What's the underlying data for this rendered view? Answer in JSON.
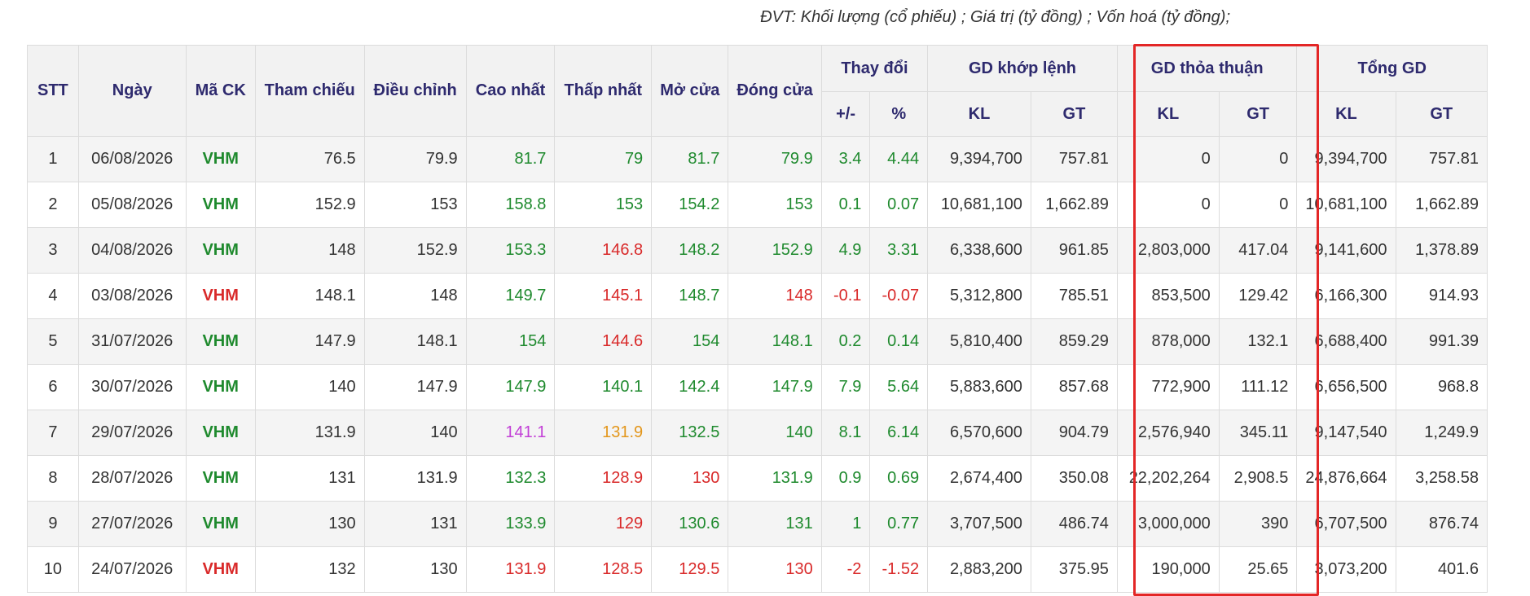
{
  "unit_note": "ĐVT: Khối lượng (cổ phiếu) ; Giá trị (tỷ đồng) ; Vốn hoá (tỷ đồng);",
  "headers": {
    "stt": "STT",
    "ngay": "Ngày",
    "ma_ck": "Mã CK",
    "tham_chieu": "Tham chiếu",
    "dieu_chinh": "Điều chỉnh",
    "cao_nhat": "Cao nhất",
    "thap_nhat": "Thấp nhất",
    "mo_cua": "Mở cửa",
    "dong_cua": "Đóng cửa",
    "thay_doi": "Thay đổi",
    "thay_doi_abs": "+/-",
    "thay_doi_pct": "%",
    "gd_khop_lenh": "GD khớp lệnh",
    "gd_thoa_thuan": "GD thỏa thuận",
    "tong_gd": "Tổng GD",
    "kl": "KL",
    "gt": "GT"
  },
  "colors": {
    "up": "#1f8a2e",
    "down": "#d92a2a",
    "ceiling": "#c23fd6",
    "reference": "#e3961b",
    "header_text": "#2e2a6e",
    "highlight_box": "#e32626"
  },
  "rows": [
    {
      "stt": "1",
      "ngay": "06/08/2026",
      "ma_ck": "VHM",
      "ma_ck_color": "up",
      "tham_chieu": "76.5",
      "dieu_chinh": "79.9",
      "cao_nhat": "81.7",
      "cao_nhat_color": "up",
      "thap_nhat": "79",
      "thap_nhat_color": "up",
      "mo_cua": "81.7",
      "mo_cua_color": "up",
      "dong_cua": "79.9",
      "dong_cua_color": "up",
      "thay_doi_abs": "3.4",
      "thay_doi_pct": "4.44",
      "thay_doi_color": "up",
      "khop_kl": "9,394,700",
      "khop_gt": "757.81",
      "tt_kl": "0",
      "tt_gt": "0",
      "tong_kl": "9,394,700",
      "tong_gt": "757.81"
    },
    {
      "stt": "2",
      "ngay": "05/08/2026",
      "ma_ck": "VHM",
      "ma_ck_color": "up",
      "tham_chieu": "152.9",
      "dieu_chinh": "153",
      "cao_nhat": "158.8",
      "cao_nhat_color": "up",
      "thap_nhat": "153",
      "thap_nhat_color": "up",
      "mo_cua": "154.2",
      "mo_cua_color": "up",
      "dong_cua": "153",
      "dong_cua_color": "up",
      "thay_doi_abs": "0.1",
      "thay_doi_pct": "0.07",
      "thay_doi_color": "up",
      "khop_kl": "10,681,100",
      "khop_gt": "1,662.89",
      "tt_kl": "0",
      "tt_gt": "0",
      "tong_kl": "10,681,100",
      "tong_gt": "1,662.89"
    },
    {
      "stt": "3",
      "ngay": "04/08/2026",
      "ma_ck": "VHM",
      "ma_ck_color": "up",
      "tham_chieu": "148",
      "dieu_chinh": "152.9",
      "cao_nhat": "153.3",
      "cao_nhat_color": "up",
      "thap_nhat": "146.8",
      "thap_nhat_color": "down",
      "mo_cua": "148.2",
      "mo_cua_color": "up",
      "dong_cua": "152.9",
      "dong_cua_color": "up",
      "thay_doi_abs": "4.9",
      "thay_doi_pct": "3.31",
      "thay_doi_color": "up",
      "khop_kl": "6,338,600",
      "khop_gt": "961.85",
      "tt_kl": "2,803,000",
      "tt_gt": "417.04",
      "tong_kl": "9,141,600",
      "tong_gt": "1,378.89"
    },
    {
      "stt": "4",
      "ngay": "03/08/2026",
      "ma_ck": "VHM",
      "ma_ck_color": "down",
      "tham_chieu": "148.1",
      "dieu_chinh": "148",
      "cao_nhat": "149.7",
      "cao_nhat_color": "up",
      "thap_nhat": "145.1",
      "thap_nhat_color": "down",
      "mo_cua": "148.7",
      "mo_cua_color": "up",
      "dong_cua": "148",
      "dong_cua_color": "down",
      "thay_doi_abs": "-0.1",
      "thay_doi_pct": "-0.07",
      "thay_doi_color": "down",
      "khop_kl": "5,312,800",
      "khop_gt": "785.51",
      "tt_kl": "853,500",
      "tt_gt": "129.42",
      "tong_kl": "6,166,300",
      "tong_gt": "914.93"
    },
    {
      "stt": "5",
      "ngay": "31/07/2026",
      "ma_ck": "VHM",
      "ma_ck_color": "up",
      "tham_chieu": "147.9",
      "dieu_chinh": "148.1",
      "cao_nhat": "154",
      "cao_nhat_color": "up",
      "thap_nhat": "144.6",
      "thap_nhat_color": "down",
      "mo_cua": "154",
      "mo_cua_color": "up",
      "dong_cua": "148.1",
      "dong_cua_color": "up",
      "thay_doi_abs": "0.2",
      "thay_doi_pct": "0.14",
      "thay_doi_color": "up",
      "khop_kl": "5,810,400",
      "khop_gt": "859.29",
      "tt_kl": "878,000",
      "tt_gt": "132.1",
      "tong_kl": "6,688,400",
      "tong_gt": "991.39"
    },
    {
      "stt": "6",
      "ngay": "30/07/2026",
      "ma_ck": "VHM",
      "ma_ck_color": "up",
      "tham_chieu": "140",
      "dieu_chinh": "147.9",
      "cao_nhat": "147.9",
      "cao_nhat_color": "up",
      "thap_nhat": "140.1",
      "thap_nhat_color": "up",
      "mo_cua": "142.4",
      "mo_cua_color": "up",
      "dong_cua": "147.9",
      "dong_cua_color": "up",
      "thay_doi_abs": "7.9",
      "thay_doi_pct": "5.64",
      "thay_doi_color": "up",
      "khop_kl": "5,883,600",
      "khop_gt": "857.68",
      "tt_kl": "772,900",
      "tt_gt": "111.12",
      "tong_kl": "6,656,500",
      "tong_gt": "968.8"
    },
    {
      "stt": "7",
      "ngay": "29/07/2026",
      "ma_ck": "VHM",
      "ma_ck_color": "up",
      "tham_chieu": "131.9",
      "dieu_chinh": "140",
      "cao_nhat": "141.1",
      "cao_nhat_color": "ceiling",
      "thap_nhat": "131.9",
      "thap_nhat_color": "reference",
      "mo_cua": "132.5",
      "mo_cua_color": "up",
      "dong_cua": "140",
      "dong_cua_color": "up",
      "thay_doi_abs": "8.1",
      "thay_doi_pct": "6.14",
      "thay_doi_color": "up",
      "khop_kl": "6,570,600",
      "khop_gt": "904.79",
      "tt_kl": "2,576,940",
      "tt_gt": "345.11",
      "tong_kl": "9,147,540",
      "tong_gt": "1,249.9"
    },
    {
      "stt": "8",
      "ngay": "28/07/2026",
      "ma_ck": "VHM",
      "ma_ck_color": "up",
      "tham_chieu": "131",
      "dieu_chinh": "131.9",
      "cao_nhat": "132.3",
      "cao_nhat_color": "up",
      "thap_nhat": "128.9",
      "thap_nhat_color": "down",
      "mo_cua": "130",
      "mo_cua_color": "down",
      "dong_cua": "131.9",
      "dong_cua_color": "up",
      "thay_doi_abs": "0.9",
      "thay_doi_pct": "0.69",
      "thay_doi_color": "up",
      "khop_kl": "2,674,400",
      "khop_gt": "350.08",
      "tt_kl": "22,202,264",
      "tt_gt": "2,908.5",
      "tong_kl": "24,876,664",
      "tong_gt": "3,258.58"
    },
    {
      "stt": "9",
      "ngay": "27/07/2026",
      "ma_ck": "VHM",
      "ma_ck_color": "up",
      "tham_chieu": "130",
      "dieu_chinh": "131",
      "cao_nhat": "133.9",
      "cao_nhat_color": "up",
      "thap_nhat": "129",
      "thap_nhat_color": "down",
      "mo_cua": "130.6",
      "mo_cua_color": "up",
      "dong_cua": "131",
      "dong_cua_color": "up",
      "thay_doi_abs": "1",
      "thay_doi_pct": "0.77",
      "thay_doi_color": "up",
      "khop_kl": "3,707,500",
      "khop_gt": "486.74",
      "tt_kl": "3,000,000",
      "tt_gt": "390",
      "tong_kl": "6,707,500",
      "tong_gt": "876.74"
    },
    {
      "stt": "10",
      "ngay": "24/07/2026",
      "ma_ck": "VHM",
      "ma_ck_color": "down",
      "tham_chieu": "132",
      "dieu_chinh": "130",
      "cao_nhat": "131.9",
      "cao_nhat_color": "down",
      "thap_nhat": "128.5",
      "thap_nhat_color": "down",
      "mo_cua": "129.5",
      "mo_cua_color": "down",
      "dong_cua": "130",
      "dong_cua_color": "down",
      "thay_doi_abs": "-2",
      "thay_doi_pct": "-1.52",
      "thay_doi_color": "down",
      "khop_kl": "2,883,200",
      "khop_gt": "375.95",
      "tt_kl": "190,000",
      "tt_gt": "25.65",
      "tong_kl": "3,073,200",
      "tong_gt": "401.6"
    }
  ]
}
